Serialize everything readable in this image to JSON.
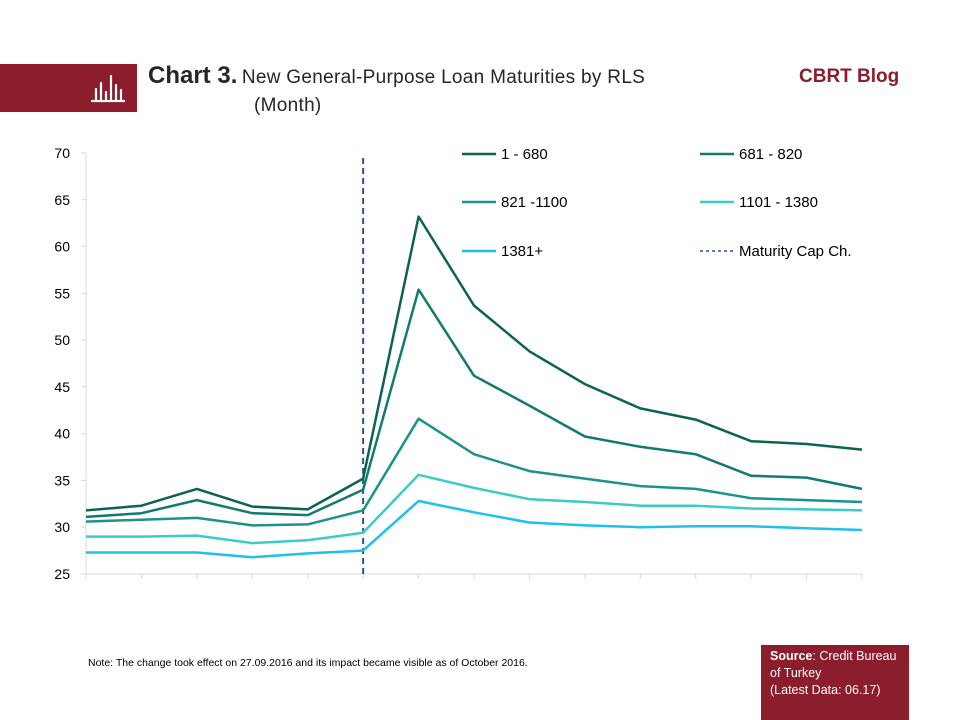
{
  "header": {
    "title_bold": "Chart 3.",
    "title_rest": "New General-Purpose Loan Maturities  by RLS",
    "title_line2": "(Month)",
    "brand": "CBRT Blog"
  },
  "footer": {
    "note": "Note: The change took effect on 27.09.2016 and its impact became visible as of October 2016.",
    "source_label": "Source",
    "source_text": ": Credit Bureau of Turkey",
    "source_latest": "(Latest Data: 06.17)"
  },
  "colors": {
    "brand": "#8b1d2c",
    "dashed_line": "#2f4f8f"
  },
  "chart_data": {
    "type": "line",
    "ylim": [
      25,
      70
    ],
    "yticks": [
      25,
      30,
      35,
      40,
      45,
      50,
      55,
      60,
      65,
      70
    ],
    "x_count": 15,
    "x_labels_shown": false,
    "maturity_cap_change_index": 5,
    "grid": false,
    "legend_placement": "top-right",
    "series": [
      {
        "name": "1 - 680",
        "color": "#0d6155",
        "values": [
          31.8,
          32.3,
          34.1,
          32.2,
          31.9,
          35.2,
          63.2,
          53.7,
          48.8,
          45.3,
          42.7,
          41.5,
          39.2,
          38.9,
          38.3
        ]
      },
      {
        "name": "681 - 820",
        "color": "#137a70",
        "values": [
          31.1,
          31.5,
          32.9,
          31.5,
          31.3,
          34.0,
          55.4,
          46.2,
          43.0,
          39.7,
          38.6,
          37.8,
          35.5,
          35.3,
          34.1
        ]
      },
      {
        "name": "821 -1100",
        "color": "#1b938a",
        "values": [
          30.6,
          30.8,
          31.0,
          30.2,
          30.3,
          31.8,
          41.6,
          37.8,
          36.0,
          35.2,
          34.4,
          34.1,
          33.1,
          32.9,
          32.7
        ]
      },
      {
        "name": "1101 - 1380",
        "color": "#3ccbc8",
        "values": [
          29.0,
          29.0,
          29.1,
          28.3,
          28.6,
          29.4,
          35.6,
          34.2,
          33.0,
          32.7,
          32.3,
          32.3,
          32.0,
          31.9,
          31.8
        ]
      },
      {
        "name": "1381+",
        "color": "#1fc0ee",
        "values": [
          27.3,
          27.3,
          27.3,
          26.8,
          27.2,
          27.5,
          32.8,
          31.6,
          30.5,
          30.2,
          30.0,
          30.1,
          30.1,
          29.9,
          29.7
        ]
      }
    ],
    "legend": [
      {
        "name": "1 - 680",
        "style": "solid",
        "color": "#0d6155"
      },
      {
        "name": "681 - 820",
        "style": "solid",
        "color": "#137a70"
      },
      {
        "name": "821 -1100",
        "style": "solid",
        "color": "#1b938a"
      },
      {
        "name": "1101 - 1380",
        "style": "solid",
        "color": "#3ccbc8"
      },
      {
        "name": "1381+",
        "style": "solid",
        "color": "#1fc0ee"
      },
      {
        "name": "Maturity Cap Ch.",
        "style": "dashed",
        "color": "#2f4f8f"
      }
    ]
  }
}
